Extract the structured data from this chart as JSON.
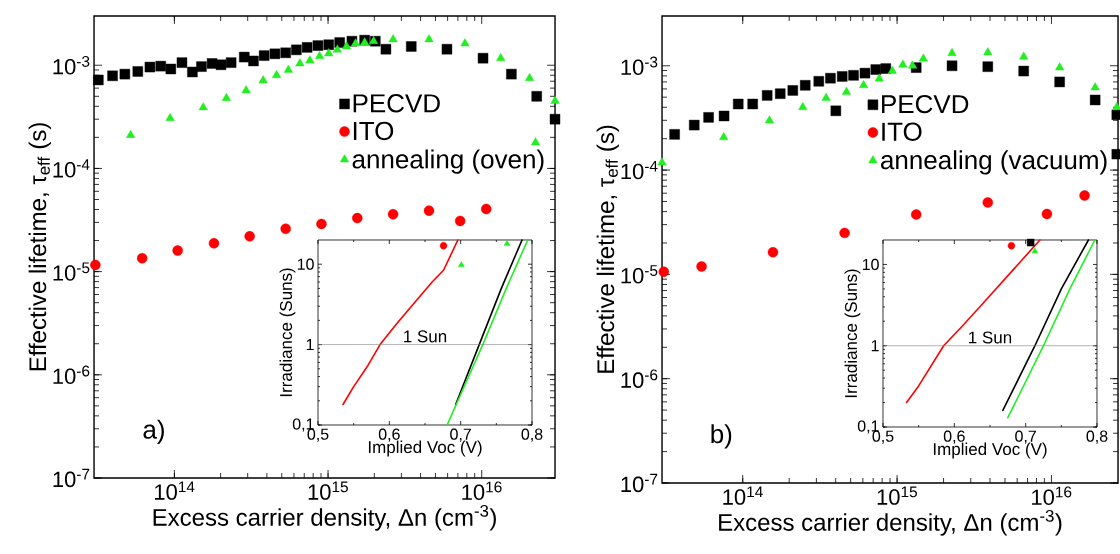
{
  "chart_data": [
    {
      "type": "scatter",
      "xlabel": "Excess carrier density, Δn (cm$^{-3}$)",
      "ylabel": "Effective lifetime, τ$_{eff}$ (s)",
      "log": "xy",
      "xlim": [
        30000000000000.0,
        3e+16
      ],
      "ylim": [
        1e-07,
        0.003
      ],
      "xticks": [
        {
          "value": 100000000000000.0,
          "label": "10$^{14}$"
        },
        {
          "value": 1000000000000000.0,
          "label": "10$^{15}$"
        },
        {
          "value": 1e+16,
          "label": "10$^{16}$"
        }
      ],
      "yticks": [
        {
          "value": 1e-07,
          "label": "10$^{-7}$"
        },
        {
          "value": 1e-06,
          "label": "10$^{-6}$"
        },
        {
          "value": 1e-05,
          "label": "10$^{-5}$"
        },
        {
          "value": 0.0001,
          "label": "10$^{-4}$"
        },
        {
          "value": 0.001,
          "label": "10$^{-3}$"
        }
      ],
      "legend": "top right",
      "annotations": [
        "a)"
      ],
      "series": [
        {
          "name": "PECVD",
          "color": "#000000",
          "marker": "square",
          "x": [
            32000000000000.0,
            39600000000000.0,
            47600000000000.0,
            57800000000000.0,
            69300000000000.0,
            81500000000000.0,
            94800000000000.0,
            112000000000000.0,
            131000000000000.0,
            150000000000000.0,
            176000000000000.0,
            201000000000000.0,
            234000000000000.0,
            285000000000000.0,
            327000000000000.0,
            384000000000000.0,
            451000000000000.0,
            530000000000000.0,
            622000000000000.0,
            731000000000000.0,
            859000000000000.0,
            1010000000000000.0,
            1190000000000000.0,
            1430000000000000.0,
            1730000000000000.0,
            2030000000000000.0,
            2380000000000000.0,
            3480000000000000.0,
            5940000000000000.0,
            1.02e+16,
            1.56e+16,
            2.28e+16,
            3e+16
          ],
          "values": [
            0.00072,
            0.00079,
            0.00082,
            0.00087,
            0.00096,
            0.00098,
            0.00092,
            0.00106,
            0.00086,
            0.00097,
            0.00104,
            0.00101,
            0.00106,
            0.0012,
            0.0011,
            0.00124,
            0.00129,
            0.00132,
            0.00141,
            0.00149,
            0.00155,
            0.00158,
            0.00166,
            0.00171,
            0.00175,
            0.00171,
            0.00143,
            0.00152,
            0.00143,
            0.00117,
            0.00082,
            0.0005,
            0.0003
          ]
        },
        {
          "name": "ITO",
          "color": "#ff0000",
          "marker": "circle",
          "x": [
            30600000000000.0,
            61700000000000.0,
            105000000000000.0,
            181000000000000.0,
            309000000000000.0,
            530000000000000.0,
            906000000000000.0,
            1550000000000000.0,
            2650000000000000.0,
            4540000000000000.0,
            1.07e+16,
            7240000000000000.0
          ],
          "values": [
            1.16e-05,
            1.35e-05,
            1.6e-05,
            1.88e-05,
            2.2e-05,
            2.6e-05,
            2.9e-05,
            3.3e-05,
            3.6e-05,
            3.9e-05,
            4.04e-05,
            3.1e-05
          ]
        },
        {
          "name": "annealing (oven)",
          "color": "#22ee22",
          "marker": "triangle",
          "x": [
            51900000000000.0,
            93800000000000.0,
            154000000000000.0,
            218000000000000.0,
            293000000000000.0,
            378000000000000.0,
            462000000000000.0,
            552000000000000.0,
            656000000000000.0,
            762000000000000.0,
            881000000000000.0,
            1010000000000000.0,
            1150000000000000.0,
            1320000000000000.0,
            1510000000000000.0,
            1730000000000000.0,
            1980000000000000.0,
            2650000000000000.0,
            4540000000000000.0,
            7780000000000000.0,
            1.33e+16,
            2.05e+16,
            3e+16,
            2.24e+16
          ],
          "values": [
            0.00021,
            0.000307,
            0.00039,
            0.00048,
            0.00057,
            0.00071,
            0.0008,
            0.0009,
            0.00104,
            0.00111,
            0.00122,
            0.0013,
            0.00141,
            0.00152,
            0.00162,
            0.00166,
            0.00171,
            0.00178,
            0.00178,
            0.00162,
            0.00117,
            0.00075,
            0.00045,
            0.000178
          ]
        }
      ]
    },
    {
      "type": "line",
      "xlabel": "Implied Voc (V)",
      "ylabel": "Irradiance (Suns)",
      "log": "y",
      "xlim": [
        0.5,
        0.8
      ],
      "ylim": [
        0.1,
        20
      ],
      "xticks": [
        {
          "value": 0.5,
          "label": "0,5"
        },
        {
          "value": 0.6,
          "label": "0,6"
        },
        {
          "value": 0.7,
          "label": "0,7"
        },
        {
          "value": 0.8,
          "label": "0,8"
        }
      ],
      "yticks": [
        {
          "value": 0.1,
          "label": "0,1"
        },
        1,
        10
      ],
      "ref_lines": [
        {
          "axis": "y",
          "value": 1,
          "label": "1 Sun",
          "color": "#808080"
        }
      ],
      "series": [
        {
          "color": "#ff0000",
          "x": [
            0.535,
            0.55,
            0.57,
            0.587,
            0.61,
            0.631,
            0.66,
            0.676,
            0.696
          ],
          "values": [
            0.18,
            0.3,
            0.55,
            1,
            1.8,
            3.0,
            6,
            8.4,
            20
          ]
        },
        {
          "color": "#000000",
          "x": [
            0.693,
            0.726,
            0.757,
            0.786
          ],
          "values": [
            0.18,
            1,
            5,
            20
          ]
        },
        {
          "color": "#22ee22",
          "x": [
            0.681,
            0.731,
            0.764,
            0.794
          ],
          "values": [
            0.1,
            1,
            5,
            20
          ]
        },
        {
          "type": "scatter",
          "marker": "circle",
          "color": "#ff0000",
          "x": [
            0.676
          ],
          "values": [
            17
          ]
        },
        {
          "type": "scatter",
          "marker": "triangle",
          "color": "#22ee22",
          "x": [
            0.701,
            0.765
          ],
          "values": [
            9.8,
            18
          ]
        }
      ]
    },
    {
      "type": "scatter",
      "xlabel": "Excess carrier density, Δn (cm$^{-3}$)",
      "ylabel": "Effective lifetime, τ$_{eff}$ (s)",
      "log": "xy",
      "xlim": [
        30000000000000.0,
        2.7e+16
      ],
      "ylim": [
        1e-07,
        0.003
      ],
      "xticks": [
        {
          "value": 100000000000000.0,
          "label": "10$^{14}$"
        },
        {
          "value": 1000000000000000.0,
          "label": "10$^{15}$"
        },
        {
          "value": 1e+16,
          "label": "10$^{16}$"
        }
      ],
      "yticks": [
        {
          "value": 1e-07,
          "label": "10$^{-7}$"
        },
        {
          "value": 1e-06,
          "label": "10$^{-6}$"
        },
        {
          "value": 1e-05,
          "label": "10$^{-5}$"
        },
        {
          "value": 0.0001,
          "label": "10$^{-4}$"
        },
        {
          "value": 0.001,
          "label": "10$^{-3}$"
        }
      ],
      "legend": "top right",
      "annotations": [
        "b)"
      ],
      "series": [
        {
          "name": "PECVD",
          "color": "#000000",
          "marker": "square",
          "x": [
            36200000000000.0,
            48500000000000.0,
            60100000000000.0,
            75700000000000.0,
            93500000000000.0,
            116000000000000.0,
            144000000000000.0,
            175000000000000.0,
            211000000000000.0,
            254000000000000.0,
            311000000000000.0,
            370000000000000.0,
            441000000000000.0,
            522000000000000.0,
            619000000000000.0,
            728000000000000.0,
            845000000000000.0,
            401000000000000.0,
            1330000000000000.0,
            2270000000000000.0,
            3870000000000000.0,
            6610000000000000.0,
            1.13e+16,
            1.92e+16,
            2.65e+16,
            2.65e+16
          ],
          "values": [
            0.00022,
            0.00027,
            0.00032,
            0.00033,
            0.00043,
            0.00043,
            0.00052,
            0.00054,
            0.00058,
            0.00065,
            0.00071,
            0.00076,
            0.00079,
            0.00081,
            0.00085,
            0.00092,
            0.00094,
            0.00037,
            0.00096,
            0.001,
            0.00098,
            0.00089,
            0.0007,
            0.00047,
            0.00034,
            0.000142
          ]
        },
        {
          "name": "ITO",
          "color": "#ff0000",
          "marker": "circle",
          "x": [
            30800000000000.0,
            54100000000000.0,
            157000000000000.0,
            457000000000000.0,
            1330000000000000.0,
            3870000000000000.0,
            1.64e+16,
            9350000000000000.0
          ],
          "values": [
            1.06e-05,
            1.19e-05,
            1.63e-05,
            2.5e-05,
            3.75e-05,
            4.9e-05,
            5.7e-05,
            3.8e-05
          ]
        },
        {
          "name": "annealing (vacuum)",
          "color": "#22ee22",
          "marker": "triangle",
          "x": [
            30000000000000.0,
            75300000000000.0,
            149000000000000.0,
            245000000000000.0,
            347000000000000.0,
            470000000000000.0,
            607000000000000.0,
            767000000000000.0,
            931000000000000.0,
            1090000000000000.0,
            1260000000000000.0,
            1480000000000000.0,
            2270000000000000.0,
            3870000000000000.0,
            6610000000000000.0,
            1.13e+16,
            1.92e+16,
            2.65e+16
          ],
          "values": [
            0.000118,
            0.000206,
            0.000298,
            0.0004,
            0.00049,
            0.00056,
            0.00065,
            0.00075,
            0.00089,
            0.00102,
            0.001,
            0.00117,
            0.00132,
            0.00134,
            0.00122,
            0.00096,
            0.00062,
            0.0004
          ]
        }
      ]
    },
    {
      "type": "line",
      "xlabel": "Implied Voc (V)",
      "ylabel": "Irradiance (Suns)",
      "log": "y",
      "xlim": [
        0.5,
        0.8
      ],
      "ylim": [
        0.1,
        20
      ],
      "xticks": [
        {
          "value": 0.5,
          "label": "0,5"
        },
        {
          "value": 0.6,
          "label": "0,6"
        },
        {
          "value": 0.7,
          "label": "0,7"
        },
        {
          "value": 0.8,
          "label": "0,8"
        }
      ],
      "yticks": [
        {
          "value": 0.1,
          "label": "0,1"
        },
        1,
        10
      ],
      "ref_lines": [
        {
          "axis": "y",
          "value": 1,
          "label": "1 Sun",
          "color": "#808080"
        }
      ],
      "series": [
        {
          "color": "#ff0000",
          "x": [
            0.533,
            0.55,
            0.585,
            0.61,
            0.64,
            0.683,
            0.72
          ],
          "values": [
            0.2,
            0.32,
            1,
            1.7,
            3.3,
            8.7,
            20
          ]
        },
        {
          "color": "#000000",
          "x": [
            0.668,
            0.713,
            0.75,
            0.788
          ],
          "values": [
            0.16,
            1,
            5,
            20
          ]
        },
        {
          "color": "#22ee22",
          "x": [
            0.675,
            0.725,
            0.762,
            0.797
          ],
          "values": [
            0.13,
            1,
            5,
            20
          ]
        },
        {
          "type": "scatter",
          "marker": "circle",
          "color": "#ff0000",
          "x": [
            0.68
          ],
          "values": [
            17
          ]
        },
        {
          "type": "scatter",
          "marker": "square",
          "color": "#000000",
          "x": [
            0.707
          ],
          "values": [
            18.6
          ]
        },
        {
          "type": "scatter",
          "marker": "triangle",
          "color": "#22ee22",
          "x": [
            0.713
          ],
          "values": [
            14.5
          ]
        }
      ]
    }
  ]
}
